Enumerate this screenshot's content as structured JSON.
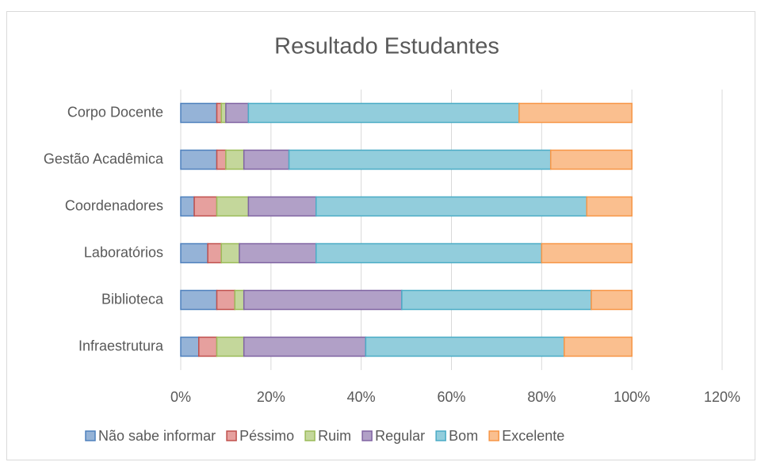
{
  "chart_data": {
    "type": "stacked-bar-horizontal",
    "title": "Resultado Estudantes",
    "categories": [
      "Corpo Docente",
      "Gestão Acadêmica",
      "Coordenadores",
      "Laboratórios",
      "Biblioteca",
      "Infraestrutura"
    ],
    "series": [
      {
        "name": "Não sabe informar",
        "color": "#95b3d7",
        "border": "#4f81bd",
        "values": [
          8,
          8,
          3,
          6,
          8,
          4
        ]
      },
      {
        "name": "Péssimo",
        "color": "#e6a09e",
        "border": "#c0504d",
        "values": [
          1,
          2,
          5,
          3,
          4,
          4
        ]
      },
      {
        "name": "Ruim",
        "color": "#c4d79b",
        "border": "#9bbb59",
        "values": [
          1,
          4,
          7,
          4,
          2,
          6
        ]
      },
      {
        "name": "Regular",
        "color": "#b1a0c7",
        "border": "#8064a2",
        "values": [
          5,
          10,
          15,
          17,
          35,
          27
        ]
      },
      {
        "name": "Bom",
        "color": "#92cddc",
        "border": "#4bacc6",
        "values": [
          60,
          58,
          60,
          50,
          42,
          44
        ]
      },
      {
        "name": "Excelente",
        "color": "#fabf8f",
        "border": "#f79646",
        "values": [
          25,
          18,
          10,
          20,
          9,
          15
        ]
      }
    ],
    "xlim": [
      0,
      120
    ],
    "xticks": [
      {
        "value": 0,
        "label": "0%"
      },
      {
        "value": 20,
        "label": "20%"
      },
      {
        "value": 40,
        "label": "40%"
      },
      {
        "value": 60,
        "label": "60%"
      },
      {
        "value": 80,
        "label": "80%"
      },
      {
        "value": 100,
        "label": "100%"
      },
      {
        "value": 120,
        "label": "120%"
      }
    ],
    "grid": true,
    "legend": "bottom"
  }
}
